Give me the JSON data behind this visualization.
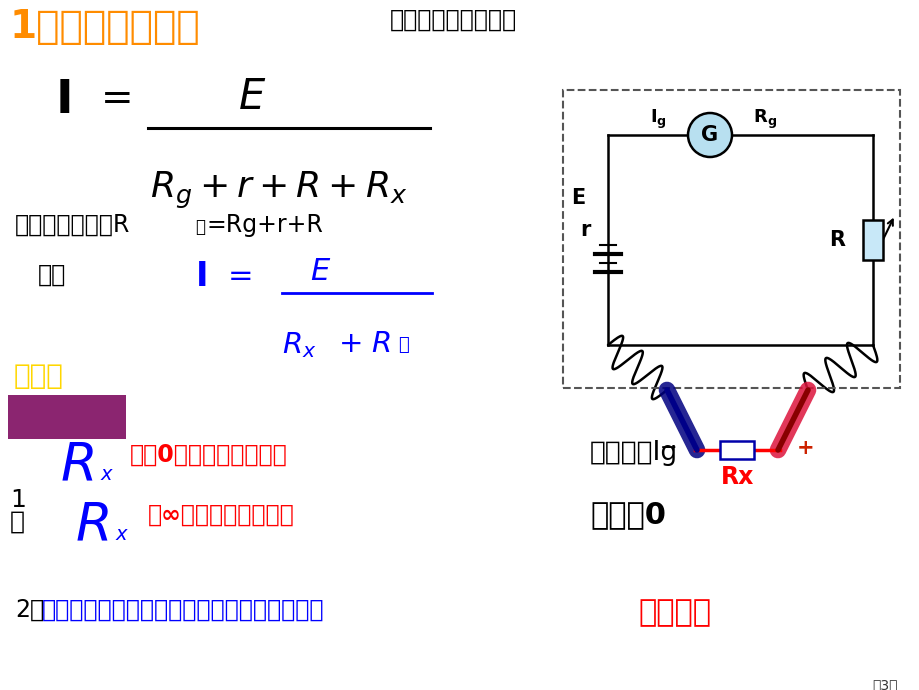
{
  "bg_color": "#ffffff",
  "title": "1、欧姆表原理：",
  "title_color": "#FF8C00",
  "subtitle": "请写出电流表示式：",
  "subtitle_color": "#000000",
  "text1a": "设欧姆表内阱为R",
  "text1b": "内",
  "text1c": "=Rg+r+R",
  "de": "得：",
  "sixiang_label": "思索：",
  "sixiang_bg": "#8B2570",
  "sixiang_color": "#FFD700",
  "q1_text": "为旰0时，电流为多少？",
  "q1_text_color": "#FF0000",
  "q1_ans": "满偏电流Ig",
  "q1_ans_color": "#000000",
  "q2_text": "为∞时，电流为多少？",
  "q2_text_color": "#FF0000",
  "q2_ans": "电流为0",
  "q2_ans_color": "#000000",
  "bottom_num": "2、",
  "bottom_q": "电流表指针指到刻度盘中央时，电阱为多少？",
  "bottom_q_color": "#0000FF",
  "bottom_ans": "中値电阱",
  "bottom_ans_color": "#FF0000",
  "page_label": "第3页"
}
